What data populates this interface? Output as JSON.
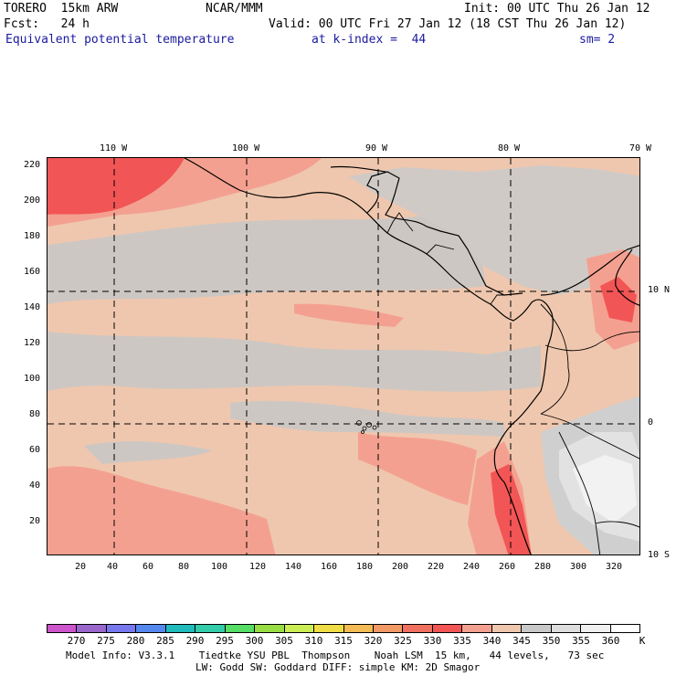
{
  "header": {
    "line1_left": "TORERO  15km ARW",
    "line1_center": "NCAR/MMM",
    "line1_right": "Init: 00 UTC Thu 26 Jan 12",
    "line2_left": "Fcst:   24 h",
    "line2_right": "Valid: 00 UTC Fri 27 Jan 12 (18 CST Thu 26 Jan 12)",
    "line3_field": "Equivalent potential temperature",
    "line3_level": "at k-index =  44",
    "line3_smooth": "sm= 2"
  },
  "map": {
    "top_lon_labels": [
      "110 W",
      "100 W",
      "90 W",
      "80 W",
      "70 W"
    ],
    "right_lat_labels": [
      "10 N",
      "0",
      "10 S"
    ],
    "y_ticks": [
      "220",
      "200",
      "180",
      "160",
      "140",
      "120",
      "100",
      "80",
      "60",
      "40",
      "20"
    ],
    "x_ticks": [
      "20",
      "40",
      "60",
      "80",
      "100",
      "120",
      "140",
      "160",
      "180",
      "200",
      "220",
      "240",
      "260",
      "280",
      "300",
      "320"
    ],
    "colors": {
      "land_line": "#000000",
      "grid_line": "#000000"
    }
  },
  "colorbar": {
    "labels": [
      "270",
      "275",
      "280",
      "285",
      "290",
      "295",
      "300",
      "305",
      "310",
      "315",
      "320",
      "325",
      "330",
      "335",
      "340",
      "345",
      "350",
      "355",
      "360"
    ],
    "unit": "K",
    "colors": [
      "#cc55cc",
      "#9966cc",
      "#7777ee",
      "#5588ee",
      "#22bbbb",
      "#33ccaa",
      "#55dd66",
      "#99dd44",
      "#ccee55",
      "#eedd44",
      "#f2bb55",
      "#f29966",
      "#f07060",
      "#f25555",
      "#f4a090",
      "#efc7ae",
      "#c8c8c8",
      "#dddddd",
      "#f0f0f0",
      "#ffffff"
    ]
  },
  "footer": {
    "line1": "Model Info: V3.3.1    Tiedtke YSU PBL  Thompson    Noah LSM  15 km,   44 levels,   73 sec",
    "line2": "LW: Godd SW: Goddard DIFF: simple KM: 2D Smagor"
  }
}
